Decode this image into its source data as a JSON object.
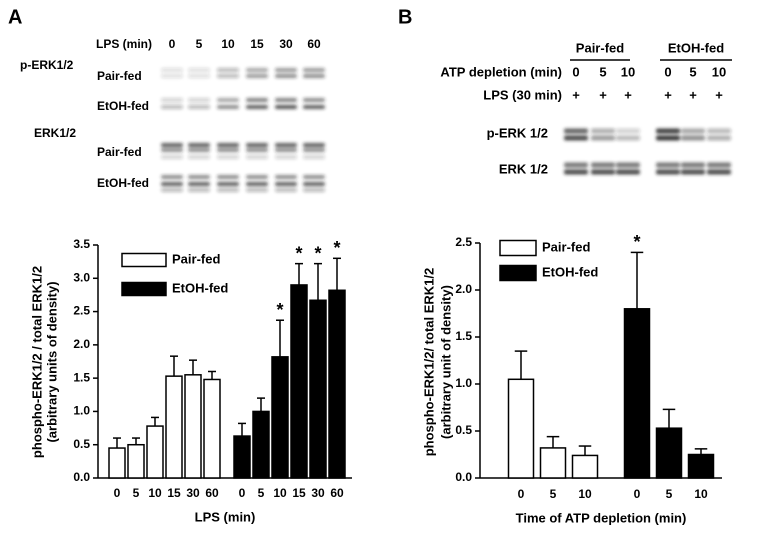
{
  "panel_labels": [
    "A",
    "B"
  ],
  "blot_a": {
    "lane_header": "LPS (min)",
    "lanes": [
      "0",
      "5",
      "10",
      "15",
      "30",
      "60"
    ],
    "section_labels": [
      "p-ERK1/2",
      "ERK1/2"
    ],
    "row_labels": [
      "Pair-fed",
      "EtOH-fed",
      "Pair-fed",
      "EtOH-fed"
    ]
  },
  "blot_b": {
    "group_labels": [
      "Pair-fed",
      "EtOH-fed"
    ],
    "lane_header": "ATP depletion (min)",
    "lanes": [
      "0",
      "5",
      "10",
      "0",
      "5",
      "10"
    ],
    "treatment_header": "LPS (30 min)",
    "treatment": [
      "+",
      "+",
      "+",
      "+",
      "+",
      "+"
    ],
    "row_labels": [
      "p-ERK 1/2",
      "ERK 1/2"
    ]
  },
  "chart_data": [
    {
      "type": "bar",
      "ylabel": [
        "phospho-ERK1/2 / total ERK1/2",
        "(arbitrary units of density)"
      ],
      "xlabel": "LPS (min)",
      "categories": [
        "0",
        "5",
        "10",
        "15",
        "30",
        "60",
        "0",
        "5",
        "10",
        "15",
        "30",
        "60"
      ],
      "series": [
        {
          "name": "Pair-fed",
          "color": "#ffffff",
          "values": [
            0.45,
            0.5,
            0.78,
            1.53,
            1.55,
            1.48,
            null,
            null,
            null,
            null,
            null,
            null
          ],
          "errors": [
            0.15,
            0.1,
            0.13,
            0.3,
            0.22,
            0.12,
            null,
            null,
            null,
            null,
            null,
            null
          ],
          "markers": [
            null,
            null,
            null,
            null,
            null,
            null,
            null,
            null,
            null,
            null,
            null,
            null
          ]
        },
        {
          "name": "EtOH-fed",
          "color": "#000000",
          "values": [
            null,
            null,
            null,
            null,
            null,
            null,
            0.63,
            1.0,
            1.82,
            2.9,
            2.67,
            2.82
          ],
          "errors": [
            null,
            null,
            null,
            null,
            null,
            null,
            0.19,
            0.2,
            0.55,
            0.32,
            0.55,
            0.48
          ],
          "markers": [
            null,
            null,
            null,
            null,
            null,
            null,
            null,
            null,
            "*",
            "*",
            "*",
            "*"
          ]
        }
      ],
      "ylim": [
        0,
        3.5
      ],
      "yticks": [
        {
          "value": 0,
          "label": "0.0"
        },
        0.5,
        {
          "value": 1,
          "label": "1.0"
        },
        1.5,
        {
          "value": 2,
          "label": "2.0"
        },
        2.5,
        {
          "value": 3,
          "label": "3.0"
        },
        3.5
      ],
      "legend": "upper left"
    },
    {
      "type": "bar",
      "ylabel": [
        "phospho-ERK1/2/ total ERK1/2",
        "(arbitrary unit of density)"
      ],
      "xlabel": "Time of ATP depletion (min)",
      "categories": [
        "0",
        "5",
        "10",
        "0",
        "5",
        "10"
      ],
      "series": [
        {
          "name": "Pair-fed",
          "color": "#ffffff",
          "values": [
            1.05,
            0.32,
            0.24,
            null,
            null,
            null
          ],
          "errors": [
            0.3,
            0.12,
            0.1,
            null,
            null,
            null
          ],
          "markers": [
            null,
            null,
            null,
            null,
            null,
            null
          ]
        },
        {
          "name": "EtOH-fed",
          "color": "#000000",
          "values": [
            null,
            null,
            null,
            1.8,
            0.53,
            0.25
          ],
          "errors": [
            null,
            null,
            null,
            0.6,
            0.2,
            0.06
          ],
          "markers": [
            null,
            null,
            null,
            "*",
            null,
            null
          ]
        }
      ],
      "ylim": [
        0,
        2.5
      ],
      "yticks": [
        {
          "value": 0,
          "label": "0.0"
        },
        0.5,
        {
          "value": 1,
          "label": "1.0"
        },
        1.5,
        {
          "value": 2,
          "label": "2.0"
        },
        2.5
      ],
      "legend": "upper left"
    }
  ]
}
